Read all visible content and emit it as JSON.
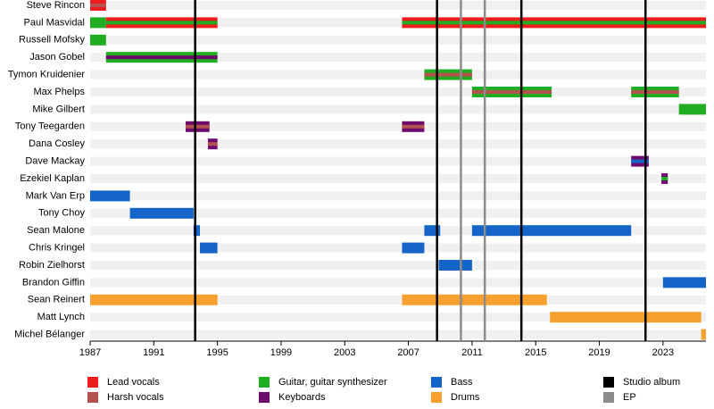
{
  "chart_data": {
    "type": "timeline",
    "xlim": [
      1987,
      2025.7
    ],
    "xticks": [
      1987,
      1991,
      1995,
      1999,
      2003,
      2007,
      2011,
      2015,
      2019,
      2023
    ],
    "roles": [
      {
        "name": "Lead vocals",
        "color": "#ee1c1c"
      },
      {
        "name": "Harsh vocals",
        "color": "#b5524f"
      },
      {
        "name": "Guitar, guitar synthesizer",
        "color": "#21ad21"
      },
      {
        "name": "Keyboards",
        "color": "#6e0a6e"
      },
      {
        "name": "Bass",
        "color": "#1565c8"
      },
      {
        "name": "Drums",
        "color": "#f7a030"
      }
    ],
    "events": [
      {
        "name": "Studio album",
        "color": "#000000",
        "years": [
          1993.6,
          2008.8,
          2014.1,
          2021.9
        ]
      },
      {
        "name": "EP",
        "color": "#8c8c8c",
        "years": [
          2010.3,
          2011.8
        ]
      }
    ],
    "members": [
      {
        "name": "Steve Rincon",
        "periods": [
          {
            "start": 1987,
            "end": 1988,
            "roles": [
              "Lead vocals",
              "Harsh vocals"
            ]
          }
        ]
      },
      {
        "name": "Paul Masvidal",
        "periods": [
          {
            "start": 1987,
            "end": 1988,
            "roles": [
              "Guitar, guitar synthesizer"
            ]
          },
          {
            "start": 1988,
            "end": 1995,
            "roles": [
              "Lead vocals",
              "Guitar, guitar synthesizer"
            ]
          },
          {
            "start": 2006.6,
            "end": 2025.7,
            "roles": [
              "Lead vocals",
              "Guitar, guitar synthesizer"
            ]
          }
        ]
      },
      {
        "name": "Russell Mofsky",
        "periods": [
          {
            "start": 1987,
            "end": 1988,
            "roles": [
              "Guitar, guitar synthesizer"
            ]
          }
        ]
      },
      {
        "name": "Jason Gobel",
        "periods": [
          {
            "start": 1988,
            "end": 1995,
            "roles": [
              "Guitar, guitar synthesizer",
              "Keyboards"
            ]
          }
        ]
      },
      {
        "name": "Tymon Kruidenier",
        "periods": [
          {
            "start": 2008,
            "end": 2011,
            "roles": [
              "Guitar, guitar synthesizer",
              "Harsh vocals"
            ]
          }
        ]
      },
      {
        "name": "Max Phelps",
        "periods": [
          {
            "start": 2011,
            "end": 2016,
            "roles": [
              "Guitar, guitar synthesizer",
              "Harsh vocals"
            ]
          },
          {
            "start": 2021,
            "end": 2024,
            "roles": [
              "Guitar, guitar synthesizer",
              "Harsh vocals"
            ]
          }
        ]
      },
      {
        "name": "Mike Gilbert",
        "periods": [
          {
            "start": 2024,
            "end": 2025.7,
            "roles": [
              "Guitar, guitar synthesizer"
            ]
          }
        ]
      },
      {
        "name": "Tony Teegarden",
        "periods": [
          {
            "start": 1993,
            "end": 1994.5,
            "roles": [
              "Keyboards",
              "Harsh vocals"
            ]
          },
          {
            "start": 2006.6,
            "end": 2008,
            "roles": [
              "Keyboards",
              "Harsh vocals"
            ]
          }
        ]
      },
      {
        "name": "Dana Cosley",
        "periods": [
          {
            "start": 1994.4,
            "end": 1995,
            "roles": [
              "Keyboards",
              "Harsh vocals"
            ]
          }
        ]
      },
      {
        "name": "Dave Mackay",
        "periods": [
          {
            "start": 2021,
            "end": 2022.1,
            "roles": [
              "Keyboards",
              "Bass"
            ]
          }
        ]
      },
      {
        "name": "Ezekiel Kaplan",
        "periods": [
          {
            "start": 2022.9,
            "end": 2023.3,
            "roles": [
              "Keyboards",
              "Guitar, guitar synthesizer"
            ]
          }
        ]
      },
      {
        "name": "Mark Van Erp",
        "periods": [
          {
            "start": 1987,
            "end": 1989.5,
            "roles": [
              "Bass"
            ]
          }
        ]
      },
      {
        "name": "Tony Choy",
        "periods": [
          {
            "start": 1989.5,
            "end": 1993.5,
            "roles": [
              "Bass"
            ]
          }
        ]
      },
      {
        "name": "Sean Malone",
        "periods": [
          {
            "start": 1993.5,
            "end": 1993.9,
            "roles": [
              "Bass"
            ]
          },
          {
            "start": 2008,
            "end": 2009,
            "roles": [
              "Bass"
            ]
          },
          {
            "start": 2011,
            "end": 2021,
            "roles": [
              "Bass"
            ]
          }
        ]
      },
      {
        "name": "Chris Kringel",
        "periods": [
          {
            "start": 1993.9,
            "end": 1995,
            "roles": [
              "Bass"
            ]
          },
          {
            "start": 2006.6,
            "end": 2008,
            "roles": [
              "Bass"
            ]
          }
        ]
      },
      {
        "name": "Robin Zielhorst",
        "periods": [
          {
            "start": 2008.9,
            "end": 2011,
            "roles": [
              "Bass"
            ]
          }
        ]
      },
      {
        "name": "Brandon Giffin",
        "periods": [
          {
            "start": 2023,
            "end": 2025.7,
            "roles": [
              "Bass"
            ]
          }
        ]
      },
      {
        "name": "Sean Reinert",
        "periods": [
          {
            "start": 1987,
            "end": 1995,
            "roles": [
              "Drums"
            ]
          },
          {
            "start": 2006.6,
            "end": 2015.7,
            "roles": [
              "Drums"
            ]
          }
        ]
      },
      {
        "name": "Matt Lynch",
        "periods": [
          {
            "start": 2015.9,
            "end": 2025.4,
            "roles": [
              "Drums"
            ]
          }
        ]
      },
      {
        "name": "Michel Bélanger",
        "periods": [
          {
            "start": 2025.4,
            "end": 2025.7,
            "roles": [
              "Drums"
            ]
          }
        ]
      }
    ]
  }
}
